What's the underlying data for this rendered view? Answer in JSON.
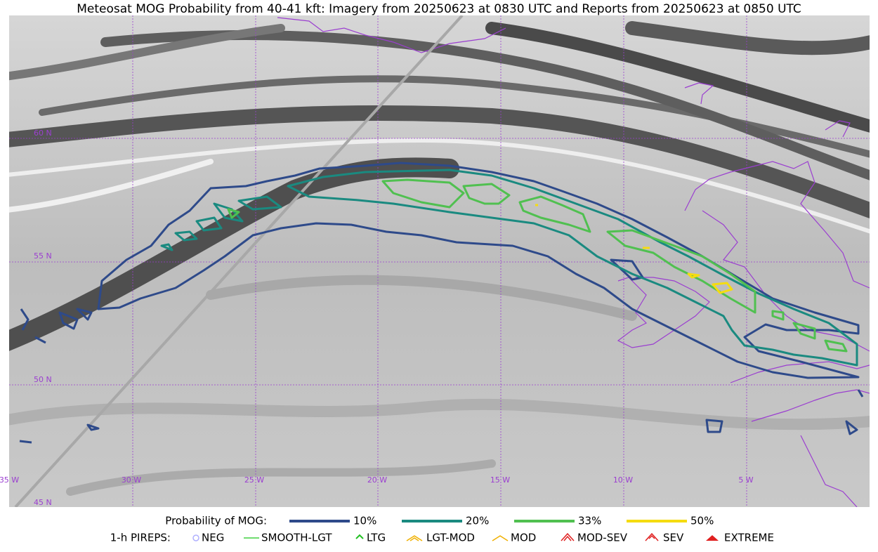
{
  "title": "Meteosat MOG Probability from 40-41 kft: Imagery from 20250623 at 0830 UTC and Reports from 20250623 at 0850 UTC",
  "map": {
    "lat_labels": [
      "60 N",
      "55 N",
      "50 N",
      "45 N"
    ],
    "lon_labels": [
      "35 W",
      "30 W",
      "25 W",
      "20 W",
      "15 W",
      "10 W",
      "5 W"
    ]
  },
  "legend": {
    "probability": {
      "label": "Probability of MOG:",
      "items": [
        {
          "label": "10%",
          "color": "#2e4a8a"
        },
        {
          "label": "20%",
          "color": "#1a8a80"
        },
        {
          "label": "33%",
          "color": "#50c050"
        },
        {
          "label": "50%",
          "color": "#f5dc10"
        }
      ]
    },
    "pireps": {
      "label": "1-h PIREPS:",
      "items": [
        {
          "label": "NEG"
        },
        {
          "label": "SMOOTH-LGT"
        },
        {
          "label": "LTG"
        },
        {
          "label": "LGT-MOD"
        },
        {
          "label": "MOD"
        },
        {
          "label": "MOD-SEV"
        },
        {
          "label": "SEV"
        },
        {
          "label": "EXTREME"
        }
      ]
    }
  }
}
